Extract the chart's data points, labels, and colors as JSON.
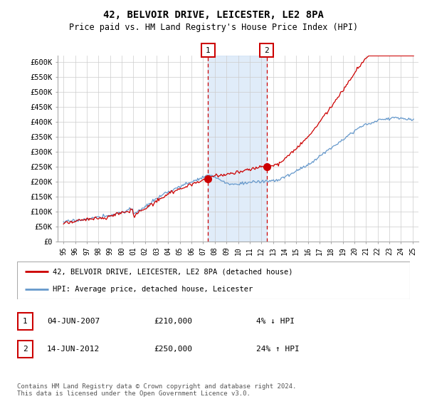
{
  "title": "42, BELVOIR DRIVE, LEICESTER, LE2 8PA",
  "subtitle": "Price paid vs. HM Land Registry's House Price Index (HPI)",
  "title_fontsize": 10,
  "subtitle_fontsize": 8.5,
  "ylim": [
    0,
    620000
  ],
  "xlim": [
    1994.5,
    2025.5
  ],
  "yticks": [
    0,
    50000,
    100000,
    150000,
    200000,
    250000,
    300000,
    350000,
    400000,
    450000,
    500000,
    550000,
    600000
  ],
  "ytick_labels": [
    "£0",
    "£50K",
    "£100K",
    "£150K",
    "£200K",
    "£250K",
    "£300K",
    "£350K",
    "£400K",
    "£450K",
    "£500K",
    "£550K",
    "£600K"
  ],
  "xticks": [
    1995,
    1996,
    1997,
    1998,
    1999,
    2000,
    2001,
    2002,
    2003,
    2004,
    2005,
    2006,
    2007,
    2008,
    2009,
    2010,
    2011,
    2012,
    2013,
    2014,
    2015,
    2016,
    2017,
    2018,
    2019,
    2020,
    2021,
    2022,
    2023,
    2024,
    2025
  ],
  "xtick_labels": [
    "95",
    "96",
    "97",
    "98",
    "99",
    "00",
    "01",
    "02",
    "03",
    "04",
    "05",
    "06",
    "07",
    "08",
    "09",
    "10",
    "11",
    "12",
    "13",
    "14",
    "15",
    "16",
    "17",
    "18",
    "19",
    "20",
    "21",
    "22",
    "23",
    "24",
    "25"
  ],
  "background_color": "#ffffff",
  "plot_bg_color": "#ffffff",
  "grid_color": "#cccccc",
  "transaction1_x": 2007.43,
  "transaction1_y": 210000,
  "transaction2_x": 2012.45,
  "transaction2_y": 250000,
  "shade_x1": 2007.43,
  "shade_x2": 2012.45,
  "shade_color": "#cce0f5",
  "shade_alpha": 0.6,
  "dashed_color": "#cc0000",
  "legend_label_red": "42, BELVOIR DRIVE, LEICESTER, LE2 8PA (detached house)",
  "legend_label_blue": "HPI: Average price, detached house, Leicester",
  "transaction_rows": [
    {
      "num": "1",
      "date": "04-JUN-2007",
      "price": "£210,000",
      "hpi": "4% ↓ HPI"
    },
    {
      "num": "2",
      "date": "14-JUN-2012",
      "price": "£250,000",
      "hpi": "24% ↑ HPI"
    }
  ],
  "footer": "Contains HM Land Registry data © Crown copyright and database right 2024.\nThis data is licensed under the Open Government Licence v3.0.",
  "red_line_color": "#cc0000",
  "blue_line_color": "#6699cc"
}
